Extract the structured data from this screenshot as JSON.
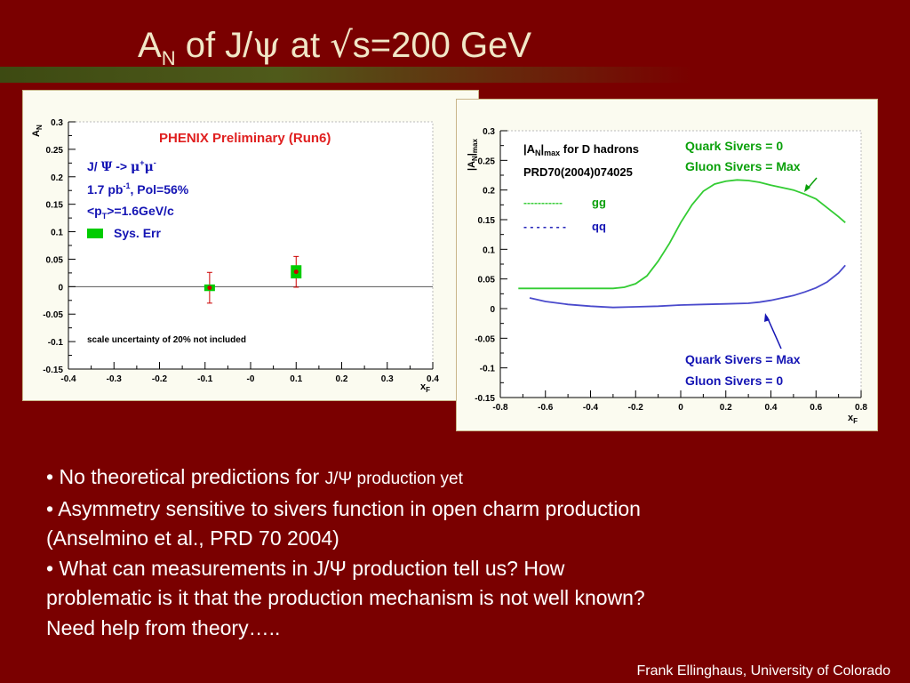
{
  "slide": {
    "title": {
      "main": "A",
      "sub": "N",
      "mid": " of J/",
      "psi": "ψ",
      "at": " at ",
      "sqrt": "√",
      "end": "s=200 GeV"
    },
    "bullets": [
      {
        "bullet": "• ",
        "text": "No theoretical predictions for ",
        "small": "J/Ψ production yet"
      },
      {
        "bullet": "• ",
        "text": "Asymmetry sensitive to sivers function in open charm production"
      },
      {
        "text": "(Anselmino et al., PRD 70 2004)"
      },
      {
        "bullet": "• ",
        "text": "What can measurements in J/Ψ production tell us? How"
      },
      {
        "text": "problematic is it that the production mechanism is not well known?"
      },
      {
        "text": "Need help from theory….."
      }
    ],
    "footer": "Frank Ellinghaus, University of Colorado"
  },
  "colors": {
    "background": "#7a0000",
    "title": "#f1e7c7",
    "panel": "#fbfbf0",
    "data_point": "#cc0000",
    "sys_err": "#00cc00",
    "gg_curve": "#33cc33",
    "qq_curve": "#4a4acc",
    "blue_text": "#1414b4",
    "green_text": "#0aa00a"
  },
  "chart_data": [
    {
      "type": "scatter",
      "ylabel_main": "A",
      "ylabel_sub": "N",
      "xlabel_main": "x",
      "xlabel_sub": "F",
      "xlim": [
        -0.4,
        0.4
      ],
      "ylim": [
        -0.15,
        0.3
      ],
      "xticks": [
        "-0.4",
        "-0.3",
        "-0.2",
        "-0.1",
        "-0",
        "0.1",
        "0.2",
        "0.3",
        "0.4"
      ],
      "xtick_values": [
        -0.4,
        -0.3,
        -0.2,
        -0.1,
        0,
        0.1,
        0.2,
        0.3,
        0.4
      ],
      "yticks": [
        "-0.15",
        "-0.1",
        "-0.05",
        "0",
        "0.05",
        "0.1",
        "0.15",
        "0.2",
        "0.25",
        "0.3"
      ],
      "ytick_values": [
        -0.15,
        -0.1,
        -0.05,
        0,
        0.05,
        0.1,
        0.15,
        0.2,
        0.25,
        0.3
      ],
      "zero_line": true,
      "points": [
        {
          "x": -0.09,
          "y": -0.002,
          "err": 0.028,
          "sys": 0.006
        },
        {
          "x": 0.1,
          "y": 0.027,
          "err": 0.028,
          "sys": 0.012
        }
      ],
      "annotations": {
        "preliminary": "PHENIX Preliminary (Run6)",
        "channel_a": "J/ ",
        "channel_psi": "Ψ",
        "channel_b": " -> ",
        "channel_mu1": "μ",
        "channel_plus": "+",
        "channel_mu2": "μ",
        "channel_minus": "-",
        "lumi_a": "1.7 pb",
        "lumi_exp": "-1",
        "lumi_b": ", Pol=56%",
        "pt_a": "<p",
        "pt_sub": "T",
        "pt_b": ">=1.6GeV/c",
        "sys_label": "Sys. Err",
        "scale_note": "scale uncertainty of 20% not included"
      }
    },
    {
      "type": "line",
      "ylabel_main": "|A",
      "ylabel_sub": "N",
      "ylabel_end": "|",
      "ylabel_max": "max",
      "xlabel_main": "x",
      "xlabel_sub": "F",
      "xlim": [
        -0.8,
        0.8
      ],
      "ylim": [
        -0.15,
        0.3
      ],
      "xticks": [
        "-0.8",
        "-0.6",
        "-0.4",
        "-0.2",
        "0",
        "0.2",
        "0.4",
        "0.6",
        "0.8"
      ],
      "xtick_values": [
        -0.8,
        -0.6,
        -0.4,
        -0.2,
        0,
        0.2,
        0.4,
        0.6,
        0.8
      ],
      "yticks": [
        "-0.15",
        "-0.1",
        "-0.05",
        "0",
        "0.05",
        "0.1",
        "0.15",
        "0.2",
        "0.25",
        "0.3"
      ],
      "ytick_values": [
        -0.15,
        -0.1,
        -0.05,
        0,
        0.05,
        0.1,
        0.15,
        0.2,
        0.25,
        0.3
      ],
      "series": [
        {
          "name": "gg",
          "x": [
            -0.72,
            -0.6,
            -0.5,
            -0.4,
            -0.3,
            -0.25,
            -0.2,
            -0.15,
            -0.1,
            -0.05,
            0.0,
            0.05,
            0.1,
            0.15,
            0.2,
            0.25,
            0.3,
            0.35,
            0.4,
            0.5,
            0.55,
            0.6,
            0.65,
            0.7,
            0.73
          ],
          "y": [
            0.034,
            0.034,
            0.034,
            0.034,
            0.034,
            0.036,
            0.042,
            0.055,
            0.08,
            0.11,
            0.145,
            0.175,
            0.198,
            0.21,
            0.215,
            0.217,
            0.216,
            0.213,
            0.208,
            0.2,
            0.193,
            0.185,
            0.17,
            0.155,
            0.145
          ]
        },
        {
          "name": "qq",
          "x": [
            -0.67,
            -0.6,
            -0.5,
            -0.4,
            -0.3,
            -0.2,
            -0.1,
            0.0,
            0.1,
            0.2,
            0.3,
            0.35,
            0.4,
            0.45,
            0.5,
            0.55,
            0.6,
            0.65,
            0.7,
            0.73
          ],
          "y": [
            0.018,
            0.012,
            0.007,
            0.004,
            0.002,
            0.003,
            0.004,
            0.006,
            0.007,
            0.008,
            0.009,
            0.011,
            0.014,
            0.018,
            0.022,
            0.028,
            0.035,
            0.045,
            0.06,
            0.073
          ]
        }
      ],
      "annotations": {
        "header_a": "|A",
        "header_sub": "N",
        "header_b": "|",
        "header_max": "max",
        "header_c": " for D hadrons",
        "reference": "PRD70(2004)074025",
        "gg_dashes": "-----------",
        "gg_label": "gg",
        "qq_dashes": "- - - - - - -",
        "qq_label": "qq",
        "quark_sivers_zero": "Quark Sivers = 0",
        "gluon_sivers_max": "Gluon Sivers = Max",
        "quark_sivers_max": "Quark Sivers = Max",
        "gluon_sivers_zero": "Gluon Sivers = 0"
      }
    }
  ]
}
